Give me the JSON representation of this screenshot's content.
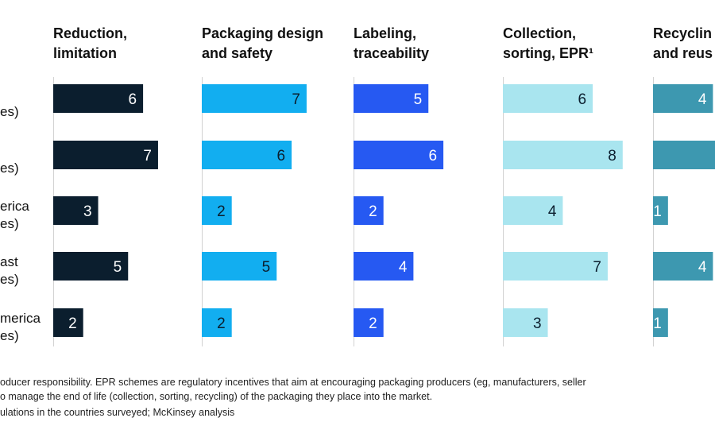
{
  "chart_data": {
    "type": "bar",
    "orientation": "horizontal",
    "rows": [
      "es)",
      "es)",
      "erica\nes)",
      "ast\nes)",
      "merica\nes)"
    ],
    "panels": [
      {
        "title": [
          "Reduction,",
          "limitation"
        ],
        "color": "#0b1e2e",
        "label_color": "#ffffff",
        "values": [
          6,
          7,
          3,
          5,
          2
        ]
      },
      {
        "title": [
          "Packaging design",
          "and safety"
        ],
        "color": "#12aef0",
        "label_color": "#0b1e2e",
        "values": [
          7,
          6,
          2,
          5,
          2
        ]
      },
      {
        "title": [
          "Labeling,",
          "traceability"
        ],
        "color": "#2659f2",
        "label_color": "#ffffff",
        "values": [
          5,
          6,
          2,
          4,
          2
        ]
      },
      {
        "title": [
          "Collection,",
          "sorting, EPR¹"
        ],
        "color": "#a9e5ef",
        "label_color": "#0b1e2e",
        "values": [
          6,
          8,
          4,
          7,
          3
        ]
      },
      {
        "title": [
          "Recyclin",
          "and reus"
        ],
        "color": "#3d98b0",
        "label_color": "#ffffff",
        "values": [
          4,
          null,
          1,
          4,
          1
        ]
      }
    ],
    "xlim": [
      0,
      10
    ],
    "grid": false,
    "legend": "none"
  },
  "footnotes": [
    "oducer responsibility. EPR schemes are regulatory incentives that aim at encouraging packaging producers (eg, manufacturers, seller",
    "o manage the end of life (collection, sorting, recycling) of the packaging they place into the market.",
    "ulations in the countries surveyed; McKinsey analysis"
  ]
}
